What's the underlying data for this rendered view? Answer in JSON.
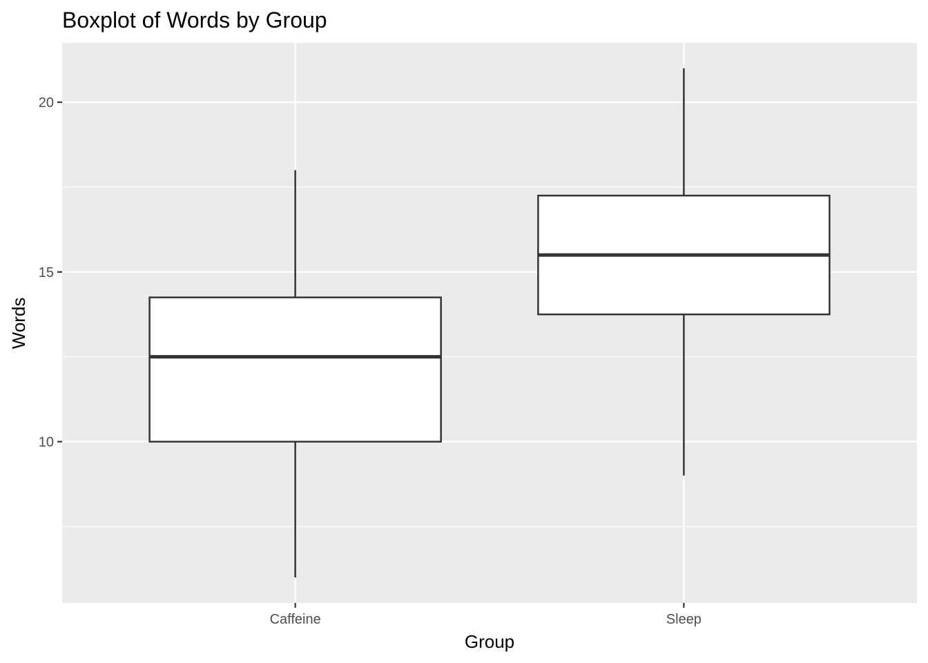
{
  "chart_data": {
    "type": "boxplot",
    "title": "Boxplot of Words by Group",
    "xlabel": "Group",
    "ylabel": "Words",
    "categories": [
      "Caffeine",
      "Sleep"
    ],
    "series": [
      {
        "name": "Caffeine",
        "min": 6,
        "q1": 10,
        "median": 12.5,
        "q3": 14.25,
        "max": 18
      },
      {
        "name": "Sleep",
        "min": 9,
        "q1": 13.75,
        "median": 15.5,
        "q3": 17.25,
        "max": 21
      }
    ],
    "y_ticks": [
      10,
      15,
      20
    ],
    "y_tick_labels": [
      "10",
      "15",
      "20"
    ],
    "ylim": [
      5.25,
      21.75
    ],
    "grid": true,
    "colors": {
      "panel_background": "#ebebeb",
      "grid": "#ffffff",
      "box_fill": "#ffffff",
      "box_stroke": "#333333",
      "tick": "#333333",
      "tick_label": "#4d4d4d"
    }
  }
}
